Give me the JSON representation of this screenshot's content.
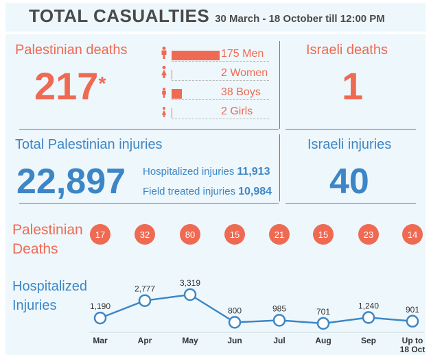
{
  "header": {
    "title": "TOTAL CASUALTIES",
    "subtitle": "30 March - 18 October till 12:00 PM"
  },
  "palestinian_deaths": {
    "label": "Palestinian deaths",
    "value": "217",
    "footnote_mark": "*",
    "breakdown": [
      {
        "label": "175 Men",
        "count": 175,
        "icon": "man-icon"
      },
      {
        "label": "2 Women",
        "count": 2,
        "icon": "woman-icon"
      },
      {
        "label": "38 Boys",
        "count": 38,
        "icon": "boy-icon"
      },
      {
        "label": "2 Girls",
        "count": 2,
        "icon": "girl-icon"
      }
    ]
  },
  "israeli_deaths": {
    "label": "Israeli deaths",
    "value": "1"
  },
  "palestinian_injuries": {
    "label": "Total Palestinian injuries",
    "value": "22,897",
    "hospitalized_label": "Hospitalized injuries",
    "hospitalized_value": "11,913",
    "field_label": "Field treated injuries",
    "field_value": "10,984"
  },
  "israeli_injuries": {
    "label": "Israeli injuries",
    "value": "40"
  },
  "monthly_deaths": {
    "label": "Palestinian Deaths",
    "values": [
      "17",
      "32",
      "80",
      "15",
      "21",
      "15",
      "23",
      "14"
    ]
  },
  "hospitalized_chart": {
    "label": "Hospitalized Injuries"
  },
  "colors": {
    "red": "#ef6a52",
    "blue": "#3d86c6",
    "panel": "#eef7fc",
    "title": "#4a4a4a"
  },
  "chart_data": {
    "type": "line",
    "categories": [
      "Mar",
      "Apr",
      "May",
      "Jun",
      "Jul",
      "Aug",
      "Sep",
      "Up to 18 Oct"
    ],
    "series": [
      {
        "values": [
          1190,
          2777,
          3319,
          800,
          985,
          701,
          1240,
          901
        ]
      }
    ],
    "data_labels": [
      "1,190",
      "2,777",
      "3,319",
      "800",
      "985",
      "701",
      "1,240",
      "901"
    ],
    "xlabel": "",
    "ylabel": "",
    "ylim": [
      0,
      3500
    ],
    "grid": false,
    "extra_bars": {
      "type": "bar",
      "categories": [
        "Men",
        "Women",
        "Boys",
        "Girls"
      ],
      "values": [
        175,
        2,
        38,
        2
      ]
    }
  }
}
